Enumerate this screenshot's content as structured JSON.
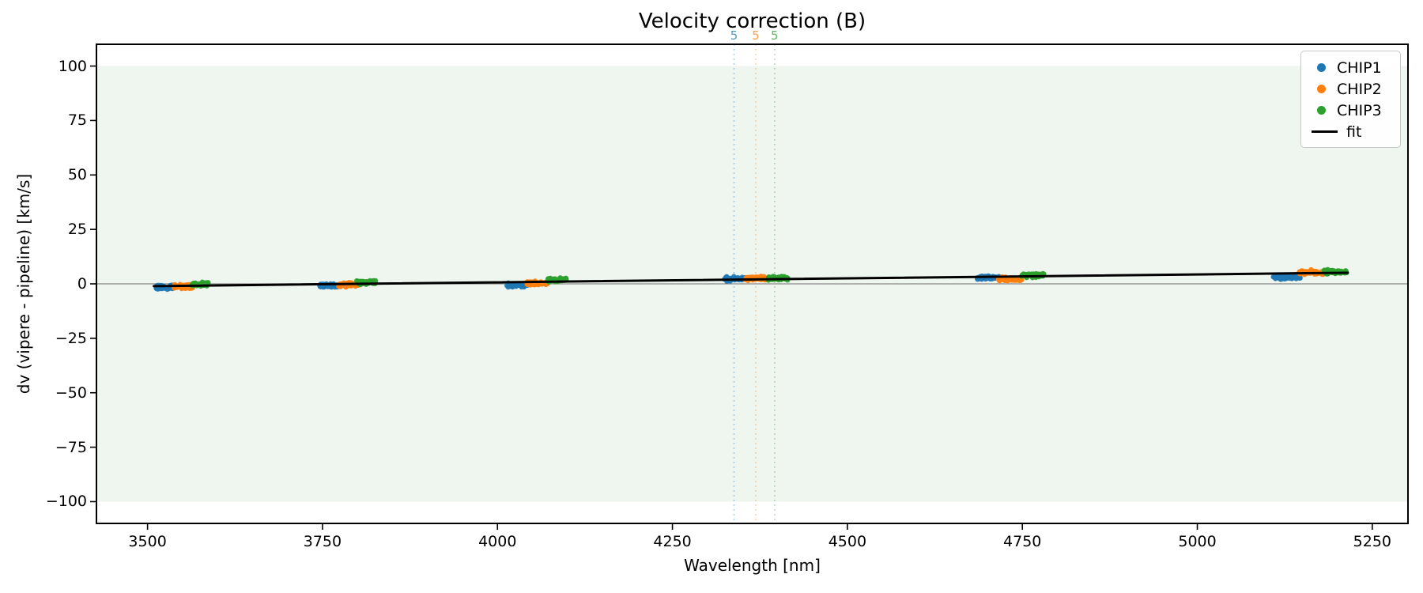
{
  "title": "Velocity correction (B)",
  "axes": {
    "xlabel": "Wavelength [nm]",
    "ylabel": "dv (vipere - pipeline) [km/s]"
  },
  "legend": {
    "items": [
      {
        "label": "CHIP1",
        "color": "#1f77b4",
        "type": "dot"
      },
      {
        "label": "CHIP2",
        "color": "#ff7f0e",
        "type": "dot"
      },
      {
        "label": "CHIP3",
        "color": "#2ca02c",
        "type": "dot"
      },
      {
        "label": "fit",
        "color": "#000000",
        "type": "line"
      }
    ]
  },
  "chart_data": {
    "type": "scatter",
    "title": "Velocity correction (B)",
    "xlabel": "Wavelength [nm]",
    "ylabel": "dv (vipere - pipeline) [km/s]",
    "xlim": [
      3427,
      5301
    ],
    "ylim": [
      -110,
      110
    ],
    "xticks": [
      3500,
      3750,
      4000,
      4250,
      4500,
      4750,
      5000,
      5250
    ],
    "yticks": [
      -100,
      -75,
      -50,
      -25,
      0,
      25,
      50,
      75,
      100
    ],
    "grid": false,
    "legend_position": "upper right",
    "shaded_band": {
      "ymin": -100,
      "ymax": 100,
      "color": "#eff6ef"
    },
    "zero_line": {
      "y": 0,
      "color": "#888888"
    },
    "order_markers": [
      {
        "label": "5",
        "wavelength": 4338,
        "color": "#1f77b4"
      },
      {
        "label": "5",
        "wavelength": 4369,
        "color": "#ff7f0e"
      },
      {
        "label": "5",
        "wavelength": 4396,
        "color": "#2ca02c"
      }
    ],
    "series": [
      {
        "name": "CHIP1",
        "color": "#1f77b4",
        "clusters": [
          {
            "wl_min": 3512,
            "wl_max": 3538,
            "dv": -1.5
          },
          {
            "wl_min": 3746,
            "wl_max": 3773,
            "dv": -0.9
          },
          {
            "wl_min": 4013,
            "wl_max": 4044,
            "dv": -0.5
          },
          {
            "wl_min": 4324,
            "wl_max": 4354,
            "dv": 2.3
          },
          {
            "wl_min": 4685,
            "wl_max": 4718,
            "dv": 2.9
          },
          {
            "wl_min": 5108,
            "wl_max": 5147,
            "dv": 3.1
          }
        ]
      },
      {
        "name": "CHIP2",
        "color": "#ff7f0e",
        "clusters": [
          {
            "wl_min": 3538,
            "wl_max": 3565,
            "dv": -1.2
          },
          {
            "wl_min": 3773,
            "wl_max": 3803,
            "dv": -0.4
          },
          {
            "wl_min": 4042,
            "wl_max": 4072,
            "dv": 0.3
          },
          {
            "wl_min": 4354,
            "wl_max": 4384,
            "dv": 2.4
          },
          {
            "wl_min": 4716,
            "wl_max": 4749,
            "dv": 2.1
          },
          {
            "wl_min": 5145,
            "wl_max": 5181,
            "dv": 5.3
          }
        ]
      },
      {
        "name": "CHIP3",
        "color": "#2ca02c",
        "clusters": [
          {
            "wl_min": 3563,
            "wl_max": 3587,
            "dv": -0.3
          },
          {
            "wl_min": 3798,
            "wl_max": 3826,
            "dv": 0.6
          },
          {
            "wl_min": 4071,
            "wl_max": 4100,
            "dv": 1.8
          },
          {
            "wl_min": 4386,
            "wl_max": 4415,
            "dv": 2.7
          },
          {
            "wl_min": 4749,
            "wl_max": 4781,
            "dv": 3.9
          },
          {
            "wl_min": 5181,
            "wl_max": 5214,
            "dv": 5.6
          }
        ]
      }
    ],
    "fit_line": {
      "name": "fit",
      "color": "#000000",
      "x": [
        3509,
        5215
      ],
      "y": [
        -1.05,
        5.1
      ]
    }
  }
}
